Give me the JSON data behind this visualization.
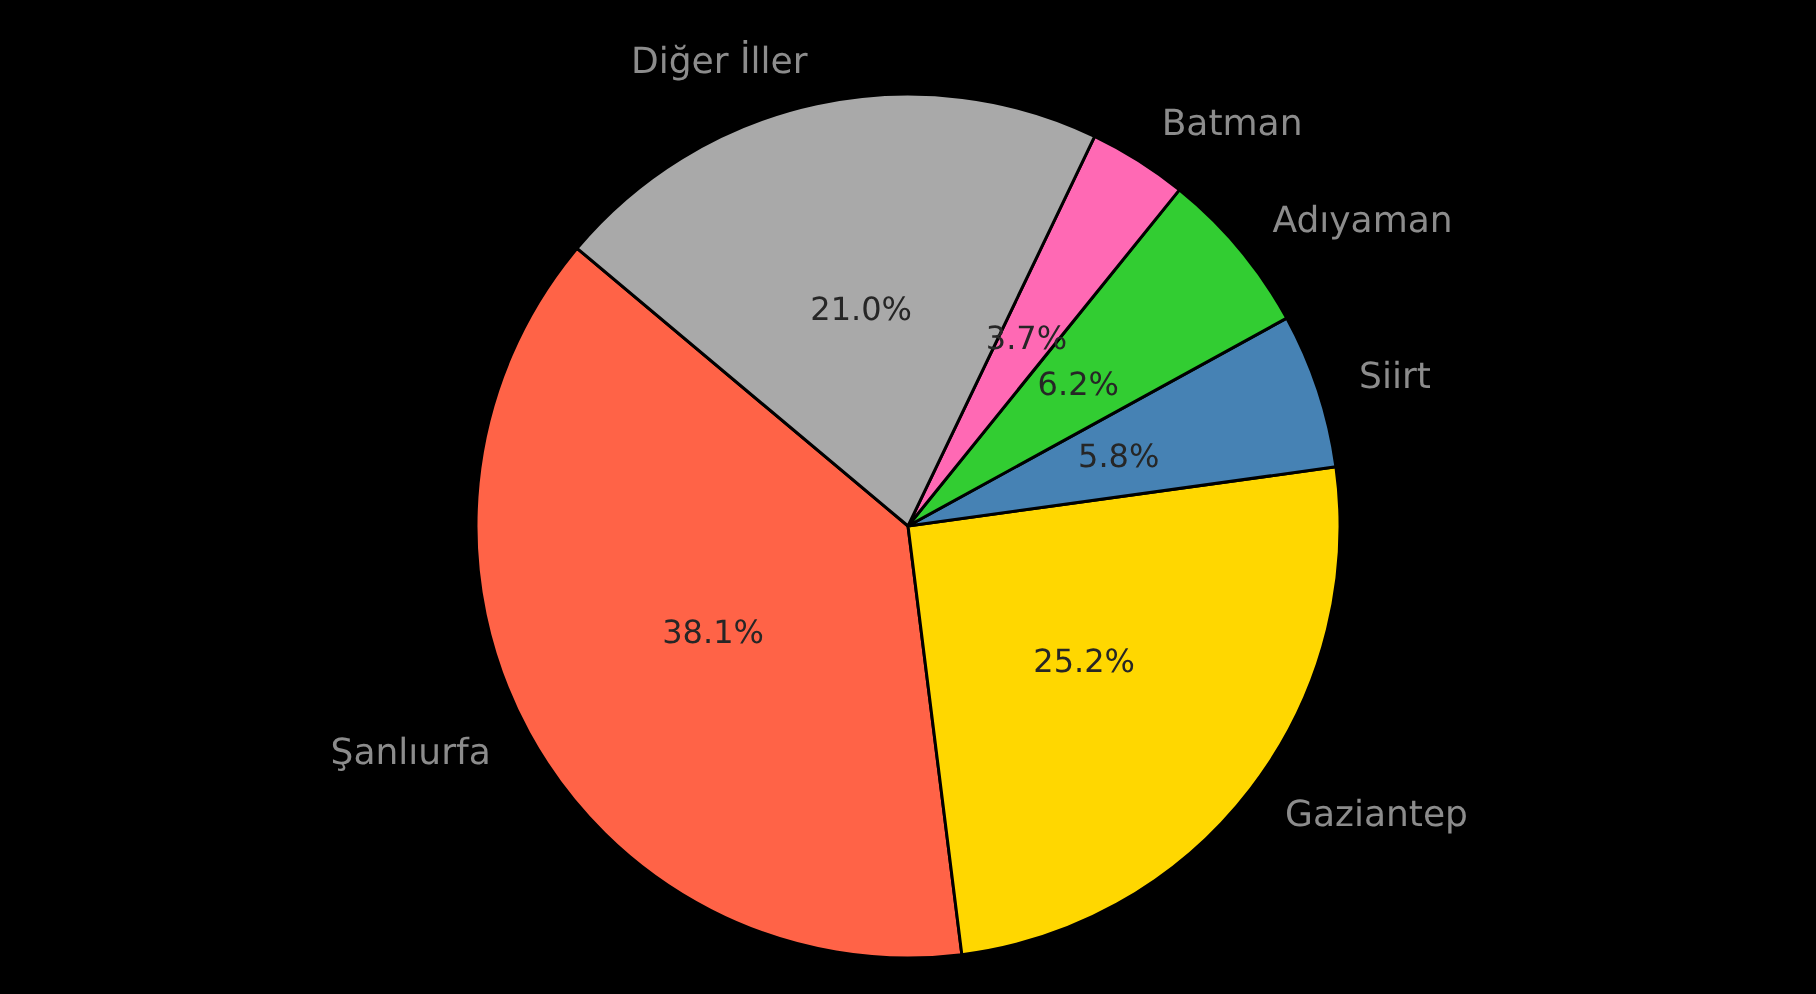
{
  "chart_data": {
    "type": "pie",
    "categories": [
      "Şanlıurfa",
      "Gaziantep",
      "Siirt",
      "Adıyaman",
      "Batman",
      "Diğer İller"
    ],
    "values": [
      38.1,
      25.2,
      5.8,
      6.2,
      3.7,
      21.0
    ],
    "colors": [
      "#ff6347",
      "#ffd700",
      "#4682b4",
      "#32cd32",
      "#ff69b4",
      "#a9a9a9"
    ],
    "value_labels": [
      "38.1%",
      "25.2%",
      "5.8%",
      "6.2%",
      "3.7%",
      "21.0%"
    ],
    "legend": false
  }
}
